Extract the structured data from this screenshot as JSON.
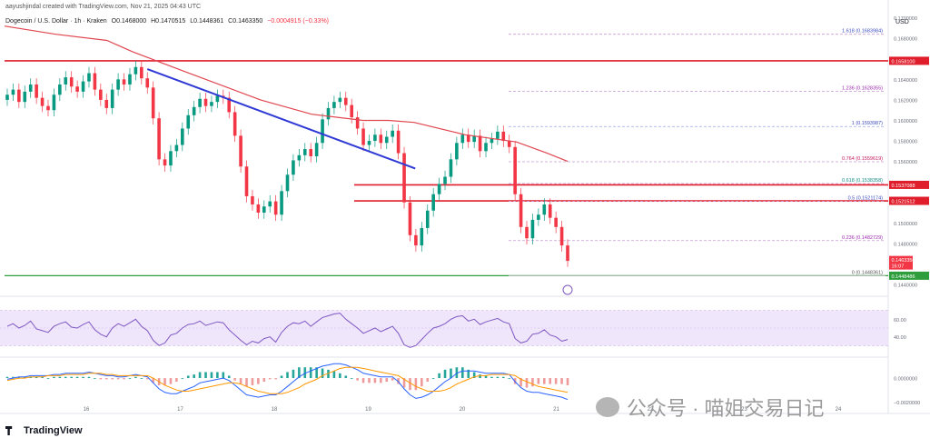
{
  "header": {
    "created": "aayushjindal created with TradingView.com, Nov 21, 2025 04:43 UTC",
    "symbol": "Dogecoin / U.S. Dollar · 1h · Kraken",
    "ohlc": [
      "O0.1468000",
      "H0.1470515",
      "L0.1448361",
      "C0.1463350",
      "−0.0004915 (−0.33%)"
    ]
  },
  "brand": {
    "logo_text": "TradingView"
  },
  "watermark": "公众号 · 喵姐交易日记",
  "colors": {
    "up": "#089981",
    "down": "#f23645",
    "trend": "#2f3ad6",
    "ma": "#e04650",
    "fib": "#9c27b0",
    "rsi": "#7e57c2",
    "resistance": "#e01e2b",
    "support": "#2e9e3c"
  },
  "chart_data": {
    "type": "candlestick",
    "currency_label": "USD",
    "price_axis": {
      "ylim": [
        0.1432,
        0.1705
      ],
      "ticks": [
        0.17,
        0.168,
        0.164,
        0.162,
        0.16,
        0.158,
        0.156,
        0.15,
        0.148,
        0.144
      ]
    },
    "x_axis": {
      "ticks": [
        "16",
        "17",
        "18",
        "19",
        "20",
        "21",
        "22",
        "23",
        "24"
      ]
    },
    "last_price": {
      "value": "0.1463350",
      "countdown": "16:07"
    },
    "levels": [
      {
        "name": "resistance-high",
        "value": 0.16581,
        "label": "0.1658100"
      },
      {
        "name": "resistance-1",
        "value": 0.153709,
        "label": "0.1537088"
      },
      {
        "name": "resistance-2",
        "value": 0.152151,
        "label": "0.1521512"
      },
      {
        "name": "support",
        "value": 0.144849,
        "label": "0.1448486"
      }
    ],
    "fibonacci": [
      {
        "ratio": "1.618",
        "value": 0.1683984,
        "label": "1.618 (0.1683984)"
      },
      {
        "ratio": "1.236",
        "value": 0.1628355,
        "label": "1.236 (0.1628355)"
      },
      {
        "ratio": "1",
        "value": 0.1593987,
        "label": "1 (0.1593987)"
      },
      {
        "ratio": "0.764",
        "value": 0.1559619,
        "label": "0.764 (0.1559619)"
      },
      {
        "ratio": "0.618",
        "value": 0.1538358,
        "label": "0.618 (0.1538358)"
      },
      {
        "ratio": "0.5",
        "value": 0.1521174,
        "label": "0.5 (0.1521174)"
      },
      {
        "ratio": "0.236",
        "value": 0.1482729,
        "label": "0.236 (0.1482729)"
      },
      {
        "ratio": "0",
        "value": 0.1448361,
        "label": "0 (0.1448361)"
      }
    ],
    "trendline": {
      "from": [
        16.65,
        0.165
      ],
      "to": [
        19.5,
        0.1553
      ]
    },
    "closes": [
      0.1625,
      0.163,
      0.1618,
      0.1628,
      0.1635,
      0.1622,
      0.1614,
      0.161,
      0.1625,
      0.1635,
      0.1642,
      0.1633,
      0.1628,
      0.1638,
      0.1646,
      0.163,
      0.162,
      0.1612,
      0.163,
      0.164,
      0.1635,
      0.1645,
      0.1652,
      0.1641,
      0.1632,
      0.1602,
      0.1562,
      0.1556,
      0.157,
      0.1576,
      0.1592,
      0.1605,
      0.1613,
      0.1621,
      0.1614,
      0.1618,
      0.1624,
      0.1622,
      0.1608,
      0.1585,
      0.1555,
      0.1526,
      0.1518,
      0.151,
      0.1516,
      0.1521,
      0.1508,
      0.1531,
      0.1547,
      0.1561,
      0.1566,
      0.1572,
      0.1565,
      0.1578,
      0.1601,
      0.1612,
      0.1618,
      0.1622,
      0.1615,
      0.1603,
      0.1592,
      0.1576,
      0.158,
      0.1586,
      0.1578,
      0.1584,
      0.159,
      0.1568,
      0.152,
      0.1488,
      0.1478,
      0.1495,
      0.1512,
      0.1528,
      0.1538,
      0.1545,
      0.1562,
      0.1578,
      0.1586,
      0.1579,
      0.1585,
      0.157,
      0.1578,
      0.1582,
      0.1589,
      0.158,
      0.1574,
      0.1528,
      0.1496,
      0.1485,
      0.1503,
      0.1508,
      0.1518,
      0.1505,
      0.1496,
      0.1478,
      0.1463
    ],
    "moving_average": [
      [
        0.0,
        0.1692
      ],
      [
        1.0,
        0.1684
      ],
      [
        2.0,
        0.1678
      ],
      [
        2.5,
        0.1667
      ],
      [
        3.5,
        0.1648
      ],
      [
        5.0,
        0.162
      ],
      [
        6.0,
        0.1606
      ],
      [
        7.0,
        0.16
      ],
      [
        7.5,
        0.16
      ],
      [
        8.0,
        0.1598
      ],
      [
        9.0,
        0.1586
      ],
      [
        10.0,
        0.1579
      ],
      [
        10.6,
        0.1568
      ],
      [
        11.0,
        0.156
      ]
    ],
    "rsi": {
      "ticks": [
        60,
        40
      ],
      "band": [
        70,
        30
      ],
      "ylim": [
        20,
        80
      ],
      "values": [
        52,
        55,
        50,
        53,
        58,
        49,
        47,
        45,
        52,
        55,
        57,
        51,
        50,
        54,
        57,
        48,
        43,
        40,
        50,
        55,
        52,
        56,
        60,
        52,
        47,
        36,
        30,
        33,
        42,
        44,
        50,
        54,
        55,
        58,
        53,
        55,
        57,
        56,
        48,
        42,
        36,
        31,
        35,
        33,
        38,
        40,
        34,
        45,
        52,
        56,
        55,
        58,
        52,
        57,
        62,
        64,
        66,
        67,
        60,
        55,
        50,
        44,
        47,
        50,
        46,
        49,
        52,
        44,
        31,
        28,
        30,
        37,
        44,
        50,
        52,
        55,
        60,
        63,
        64,
        58,
        60,
        54,
        57,
        59,
        61,
        57,
        55,
        38,
        33,
        35,
        43,
        44,
        48,
        42,
        40,
        35,
        37
      ]
    },
    "macd": {
      "ticks": [
        "0.0000000",
        "−0.0020000"
      ],
      "ylim": [
        -0.0022,
        0.0016
      ],
      "macd_line": [
        -0.0001,
        0.0,
        0.0001,
        0.0001,
        0.0002,
        0.0002,
        0.0002,
        0.0002,
        0.0003,
        0.0003,
        0.0004,
        0.0004,
        0.0004,
        0.0004,
        0.0005,
        0.0004,
        0.0003,
        0.0002,
        0.0002,
        0.0001,
        0.0001,
        0.0002,
        0.0003,
        0.0002,
        0.0001,
        -0.0004,
        -0.0009,
        -0.0012,
        -0.0013,
        -0.0013,
        -0.0011,
        -0.0009,
        -0.0007,
        -0.0004,
        -0.0003,
        -0.0002,
        -0.0001,
        0.0,
        -0.0002,
        -0.0006,
        -0.001,
        -0.0014,
        -0.0015,
        -0.0016,
        -0.0015,
        -0.0014,
        -0.0014,
        -0.0011,
        -0.0007,
        -0.0003,
        0.0001,
        0.0004,
        0.0006,
        0.0008,
        0.001,
        0.0011,
        0.0012,
        0.0012,
        0.0011,
        0.0009,
        0.0007,
        0.0004,
        0.0003,
        0.0002,
        0.0001,
        0.0001,
        0.0001,
        -0.0003,
        -0.0009,
        -0.0014,
        -0.0017,
        -0.0016,
        -0.0014,
        -0.0011,
        -0.0007,
        -0.0003,
        0.0,
        0.0004,
        0.0006,
        0.0006,
        0.0006,
        0.0005,
        0.0004,
        0.0004,
        0.0004,
        0.0004,
        0.0003,
        -0.0003,
        -0.0008,
        -0.0011,
        -0.0012,
        -0.0012,
        -0.0013,
        -0.0014,
        -0.0015,
        -0.0016,
        -0.0018
      ],
      "signal_line": [
        -0.0002,
        -0.0001,
        0.0,
        0.0,
        0.0001,
        0.0001,
        0.0001,
        0.0002,
        0.0002,
        0.0002,
        0.0003,
        0.0003,
        0.0003,
        0.0003,
        0.0004,
        0.0004,
        0.0004,
        0.0003,
        0.0003,
        0.0002,
        0.0002,
        0.0002,
        0.0002,
        0.0002,
        0.0002,
        0.0,
        -0.0003,
        -0.0006,
        -0.0008,
        -0.001,
        -0.0011,
        -0.0011,
        -0.001,
        -0.0009,
        -0.0008,
        -0.0007,
        -0.0006,
        -0.0005,
        -0.0004,
        -0.0004,
        -0.0005,
        -0.0007,
        -0.0009,
        -0.0011,
        -0.0012,
        -0.0013,
        -0.0013,
        -0.0013,
        -0.0012,
        -0.001,
        -0.0008,
        -0.0005,
        -0.0003,
        -0.0001,
        0.0002,
        0.0004,
        0.0006,
        0.0008,
        0.0009,
        0.0009,
        0.0009,
        0.0008,
        0.0007,
        0.0006,
        0.0005,
        0.0004,
        0.0003,
        0.0002,
        -0.0001,
        -0.0004,
        -0.0007,
        -0.0009,
        -0.0011,
        -0.0011,
        -0.0011,
        -0.001,
        -0.0008,
        -0.0005,
        -0.0003,
        -0.0001,
        0.0001,
        0.0002,
        0.0002,
        0.0003,
        0.0003,
        0.0003,
        0.0003,
        0.0002,
        -0.0001,
        -0.0003,
        -0.0005,
        -0.0007,
        -0.0008,
        -0.0009,
        -0.001,
        -0.0011,
        -0.0012
      ]
    }
  }
}
